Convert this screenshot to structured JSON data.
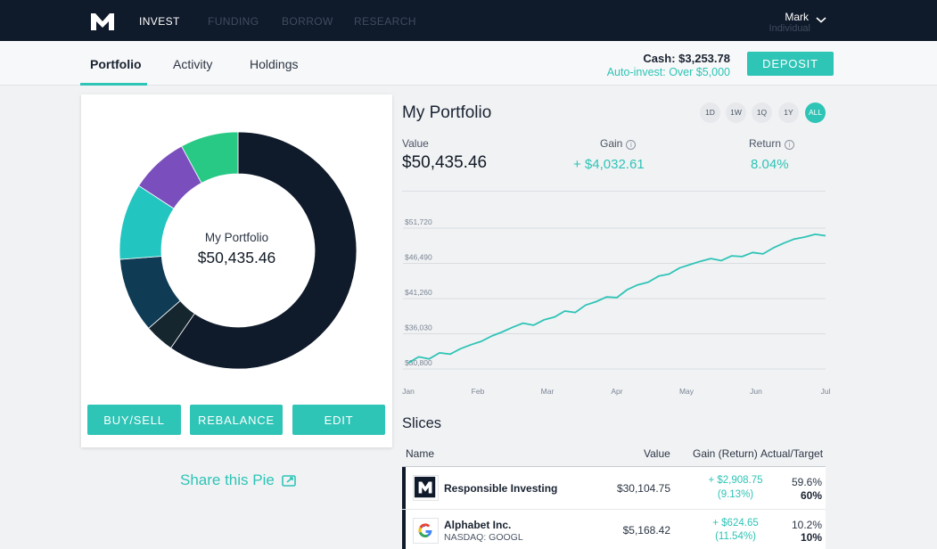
{
  "nav": {
    "items": [
      "INVEST",
      "FUNDING",
      "BORROW",
      "RESEARCH"
    ],
    "user_name": "Mark",
    "user_type": "Individual"
  },
  "tabs": [
    "Portfolio",
    "Activity",
    "Holdings"
  ],
  "account": {
    "cash": "Cash: $3,253.78",
    "auto_invest": "Auto-invest: Over $5,000",
    "deposit_label": "DEPOSIT"
  },
  "pie": {
    "center_title": "My Portfolio",
    "center_value": "$50,435.46",
    "slices": [
      {
        "pct": 59.6,
        "color": "#0f1a2a"
      },
      {
        "pct": 4.0,
        "color": "#16262f"
      },
      {
        "pct": 10.2,
        "color": "#0f3b55"
      },
      {
        "pct": 10.4,
        "color": "#22c5bf"
      },
      {
        "pct": 7.9,
        "color": "#7a4fbd"
      },
      {
        "pct": 7.9,
        "color": "#28c985"
      }
    ],
    "buttons": [
      "BUY/SELL",
      "REBALANCE",
      "EDIT"
    ],
    "share_label": "Share this Pie"
  },
  "portfolio": {
    "title": "My Portfolio",
    "ranges": [
      "1D",
      "1W",
      "1Q",
      "1Y",
      "ALL"
    ],
    "active_range": "ALL",
    "value_label": "Value",
    "value": "$50,435.46",
    "gain_label": "Gain",
    "gain": "+ $4,032.61",
    "return_label": "Return",
    "return": "8.04%"
  },
  "chart_data": {
    "type": "line",
    "title": "",
    "color": "#2ec4b6",
    "y_ticks": [
      30800,
      36030,
      41260,
      46490,
      51720
    ],
    "y_tick_labels": [
      "$30,800",
      "$36,030",
      "$41,260",
      "$46,490",
      "$51,720"
    ],
    "ylim": [
      30800,
      51720
    ],
    "x_tick_labels": [
      "Jan",
      "Feb",
      "Mar",
      "Apr",
      "May",
      "Jun",
      "Jul"
    ],
    "xlim": [
      0,
      6
    ],
    "x": [
      0,
      0.15,
      0.3,
      0.45,
      0.6,
      0.75,
      0.9,
      1.05,
      1.2,
      1.35,
      1.5,
      1.65,
      1.8,
      1.95,
      2.1,
      2.25,
      2.4,
      2.55,
      2.7,
      2.85,
      3.0,
      3.15,
      3.3,
      3.45,
      3.6,
      3.75,
      3.9,
      4.05,
      4.2,
      4.35,
      4.5,
      4.65,
      4.8,
      4.95,
      5.1,
      5.25,
      5.4,
      5.55,
      5.7,
      5.85,
      6.0
    ],
    "values": [
      31700,
      32600,
      32300,
      33200,
      33000,
      33800,
      34400,
      34900,
      35700,
      36300,
      37000,
      37600,
      37300,
      38100,
      38500,
      39400,
      39200,
      40300,
      40800,
      41500,
      41400,
      42600,
      43300,
      43700,
      44600,
      44900,
      45800,
      46300,
      46800,
      47200,
      46900,
      47600,
      47500,
      48100,
      47900,
      48800,
      49500,
      50100,
      50400,
      50800,
      50600
    ]
  },
  "slices": {
    "title": "Slices",
    "headers": [
      "Name",
      "Value",
      "Gain (Return)",
      "Actual/Target"
    ],
    "rows": [
      {
        "name": "Responsible Investing",
        "sub": "",
        "value": "$30,104.75",
        "gain": "+ $2,908.75",
        "return": "(9.13%)",
        "actual": "59.6%",
        "target": "60%",
        "icon": "m1-logo-icon"
      },
      {
        "name": "Alphabet Inc.",
        "sub": "NASDAQ: GOOGL",
        "value": "$5,168.42",
        "gain": "+ $624.65",
        "return": "(11.54%)",
        "actual": "10.2%",
        "target": "10%",
        "icon": "google-logo-icon"
      }
    ]
  }
}
